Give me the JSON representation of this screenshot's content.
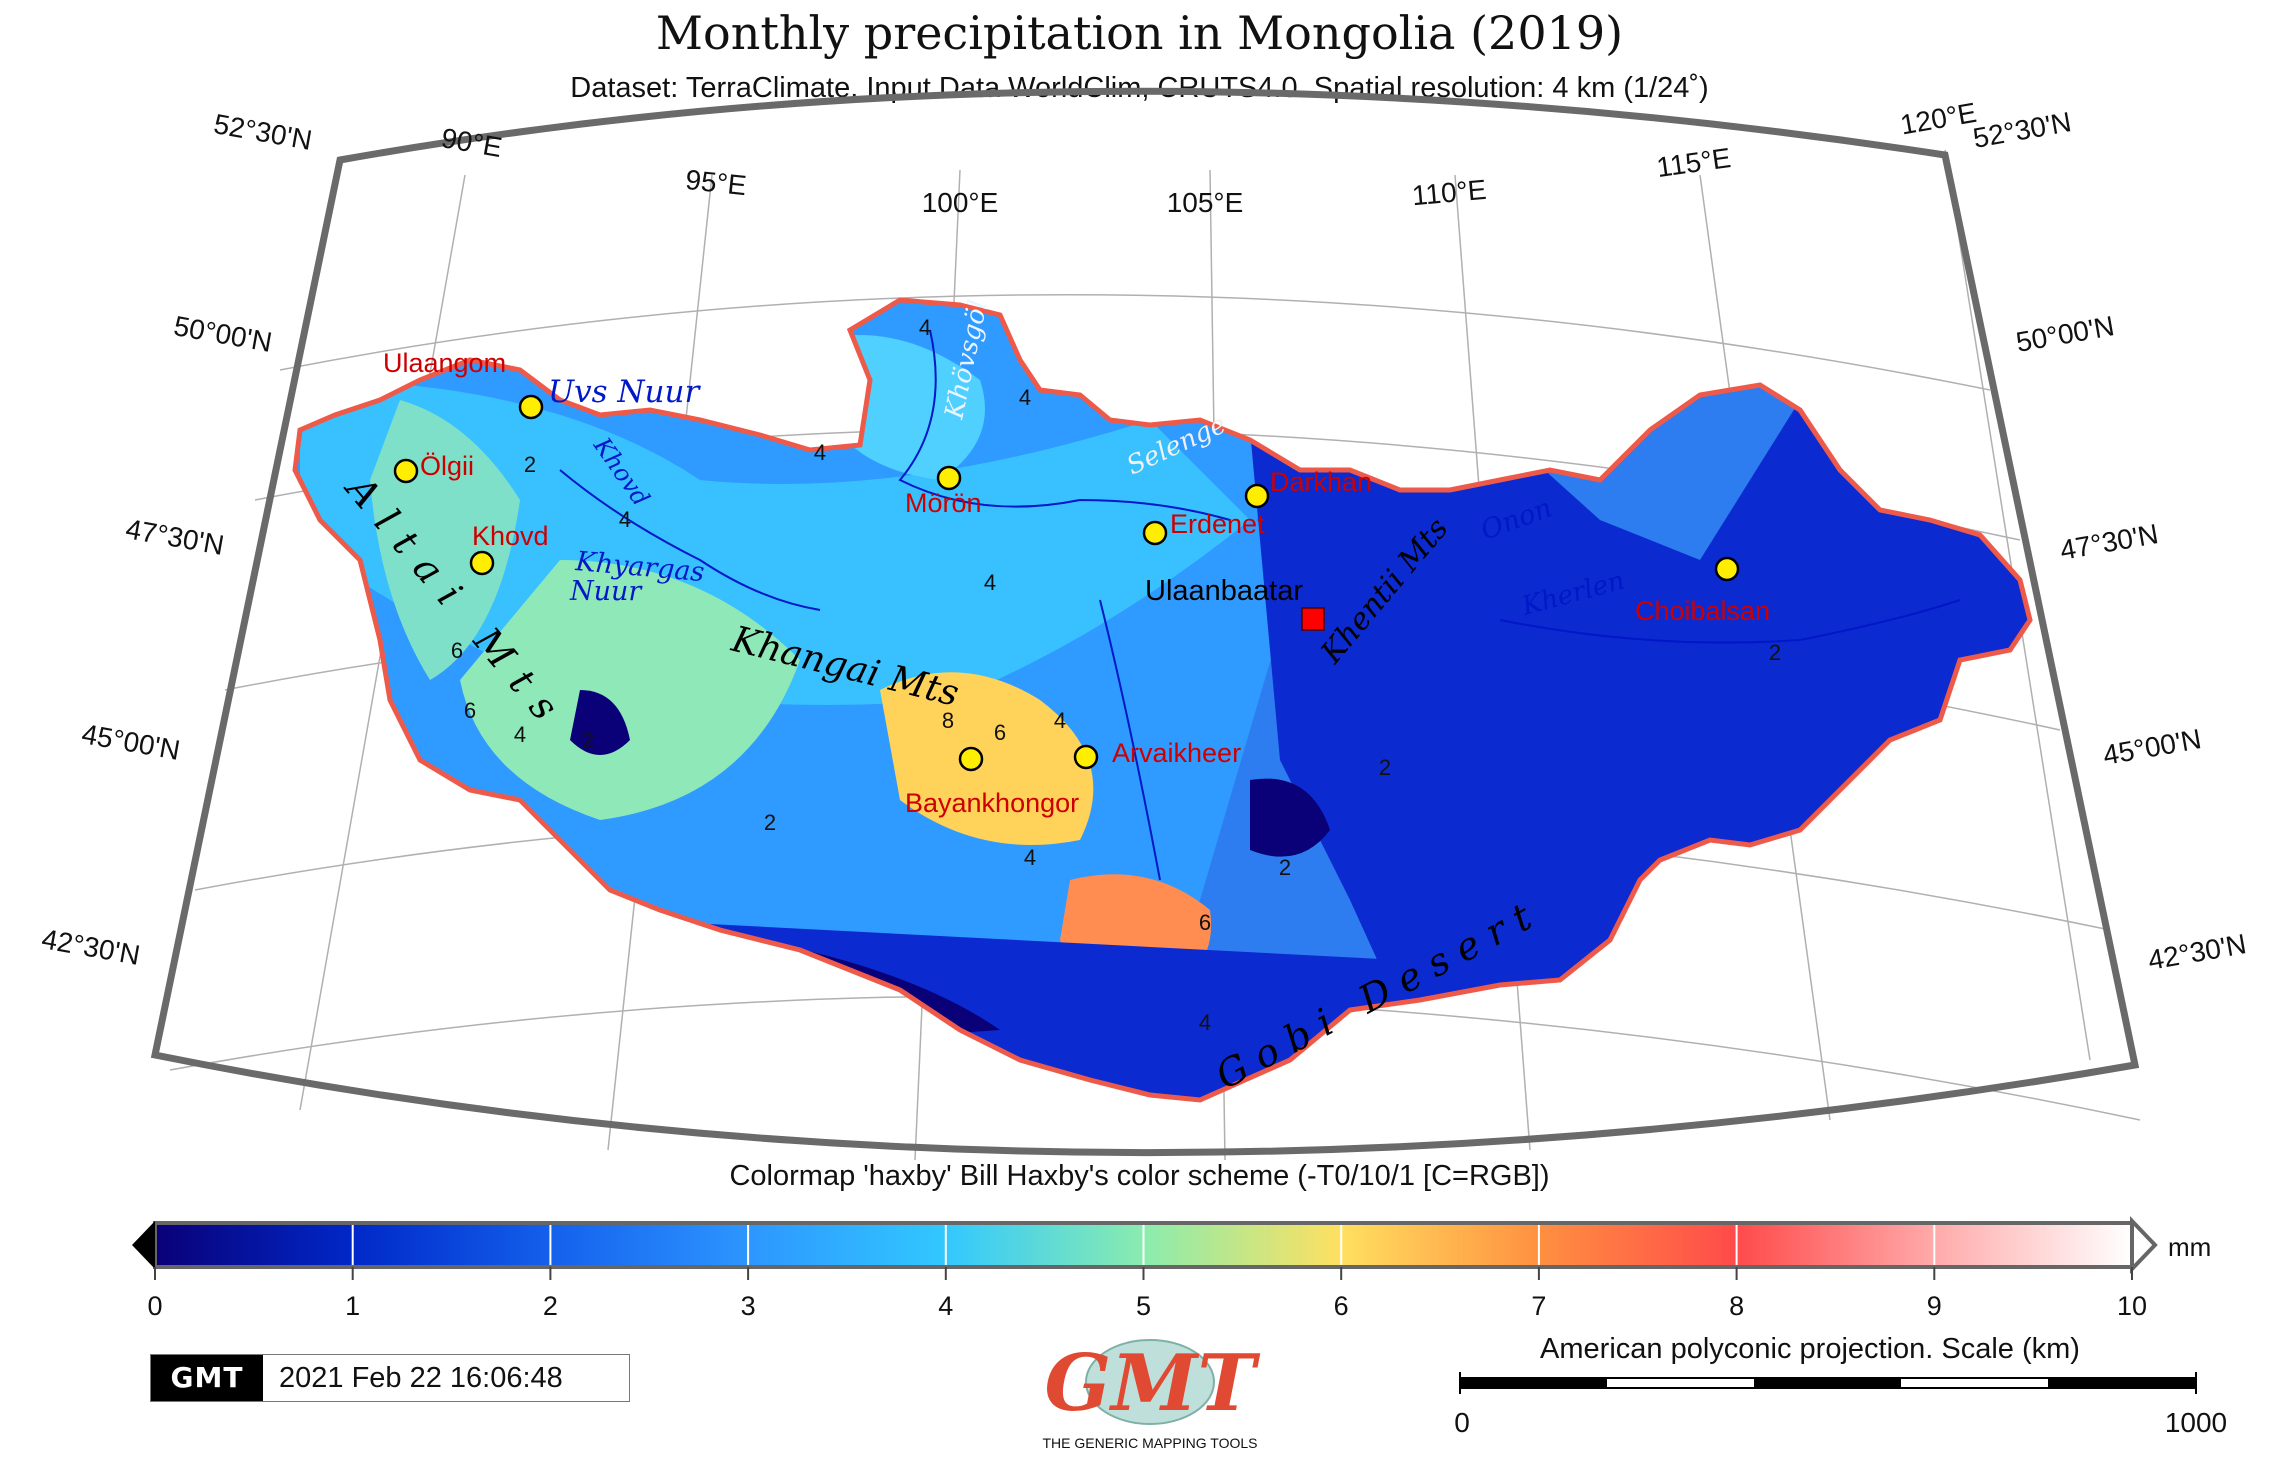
{
  "title": "Monthly precipitation in Mongolia (2019)",
  "subtitle": "Dataset: TerraClimate. Input Data WorldClim, CRUTS4.0. Spatial resolution: 4 km (1/24˚)",
  "lon_labels": [
    "90°E",
    "95°E",
    "100°E",
    "105°E",
    "110°E",
    "115°E",
    "120°E"
  ],
  "lat_labels_left": [
    "52°30'N",
    "50°00'N",
    "47°30'N",
    "45°00'N",
    "42°30'N"
  ],
  "lat_labels_right": [
    "52°30'N",
    "50°00'N",
    "47°30'N",
    "45°00'N",
    "42°30'N"
  ],
  "cities": [
    {
      "name": "Ulaangom",
      "color": "#cc0000"
    },
    {
      "name": "Ölgii",
      "color": "#cc0000"
    },
    {
      "name": "Khovd",
      "color": "#cc0000"
    },
    {
      "name": "Mörön",
      "color": "#cc0000"
    },
    {
      "name": "Erdenet",
      "color": "#cc0000"
    },
    {
      "name": "Darkhan",
      "color": "#cc0000"
    },
    {
      "name": "Ulaanbaatar",
      "color": "#000000"
    },
    {
      "name": "Choibalsan",
      "color": "#cc0000"
    },
    {
      "name": "Bayankhongor",
      "color": "#cc0000"
    },
    {
      "name": "Arvaikheer",
      "color": "#cc0000"
    }
  ],
  "features": {
    "uvs": "Uvs Nuur",
    "khyargas_1": "Khyargas",
    "khyargas_2": "Nuur",
    "altai": "Altai Mts",
    "khangai": "Khangai Mts",
    "khentii": "Khentii Mts",
    "khovsgol": "Khövsgöl",
    "selenge": "Selenge",
    "onon": "Onon",
    "kherlen": "Kherlen",
    "gobi": "Gobi Desert",
    "khovd_river": "Khovd"
  },
  "contour_labels": [
    "4",
    "4",
    "2",
    "4",
    "6",
    "6",
    "4",
    "2",
    "4",
    "4",
    "8",
    "6",
    "4",
    "4",
    "6",
    "4",
    "2",
    "2",
    "2",
    "2"
  ],
  "colormap_caption": "Colormap 'haxby' Bill Haxby's color scheme (-T0/10/1 [C=RGB])",
  "colorbar": {
    "ticks": [
      "0",
      "1",
      "2",
      "3",
      "4",
      "5",
      "6",
      "7",
      "8",
      "9",
      "10"
    ],
    "unit": "mm",
    "colors": [
      "#0a0078",
      "#0028c8",
      "#1460ec",
      "#2d96ff",
      "#32c8ff",
      "#8aecae",
      "#ffe060",
      "#ff9040",
      "#ff4a4a",
      "#ffaaaa",
      "#ffffff"
    ]
  },
  "timestamp": {
    "logo": "GMT",
    "text": "2021 Feb 22 16:06:48"
  },
  "logo": {
    "main": "GMT",
    "tagline": "THE GENERIC MAPPING TOOLS"
  },
  "scale": {
    "label": "American polyconic projection. Scale (km)",
    "min": "0",
    "max": "1000"
  }
}
